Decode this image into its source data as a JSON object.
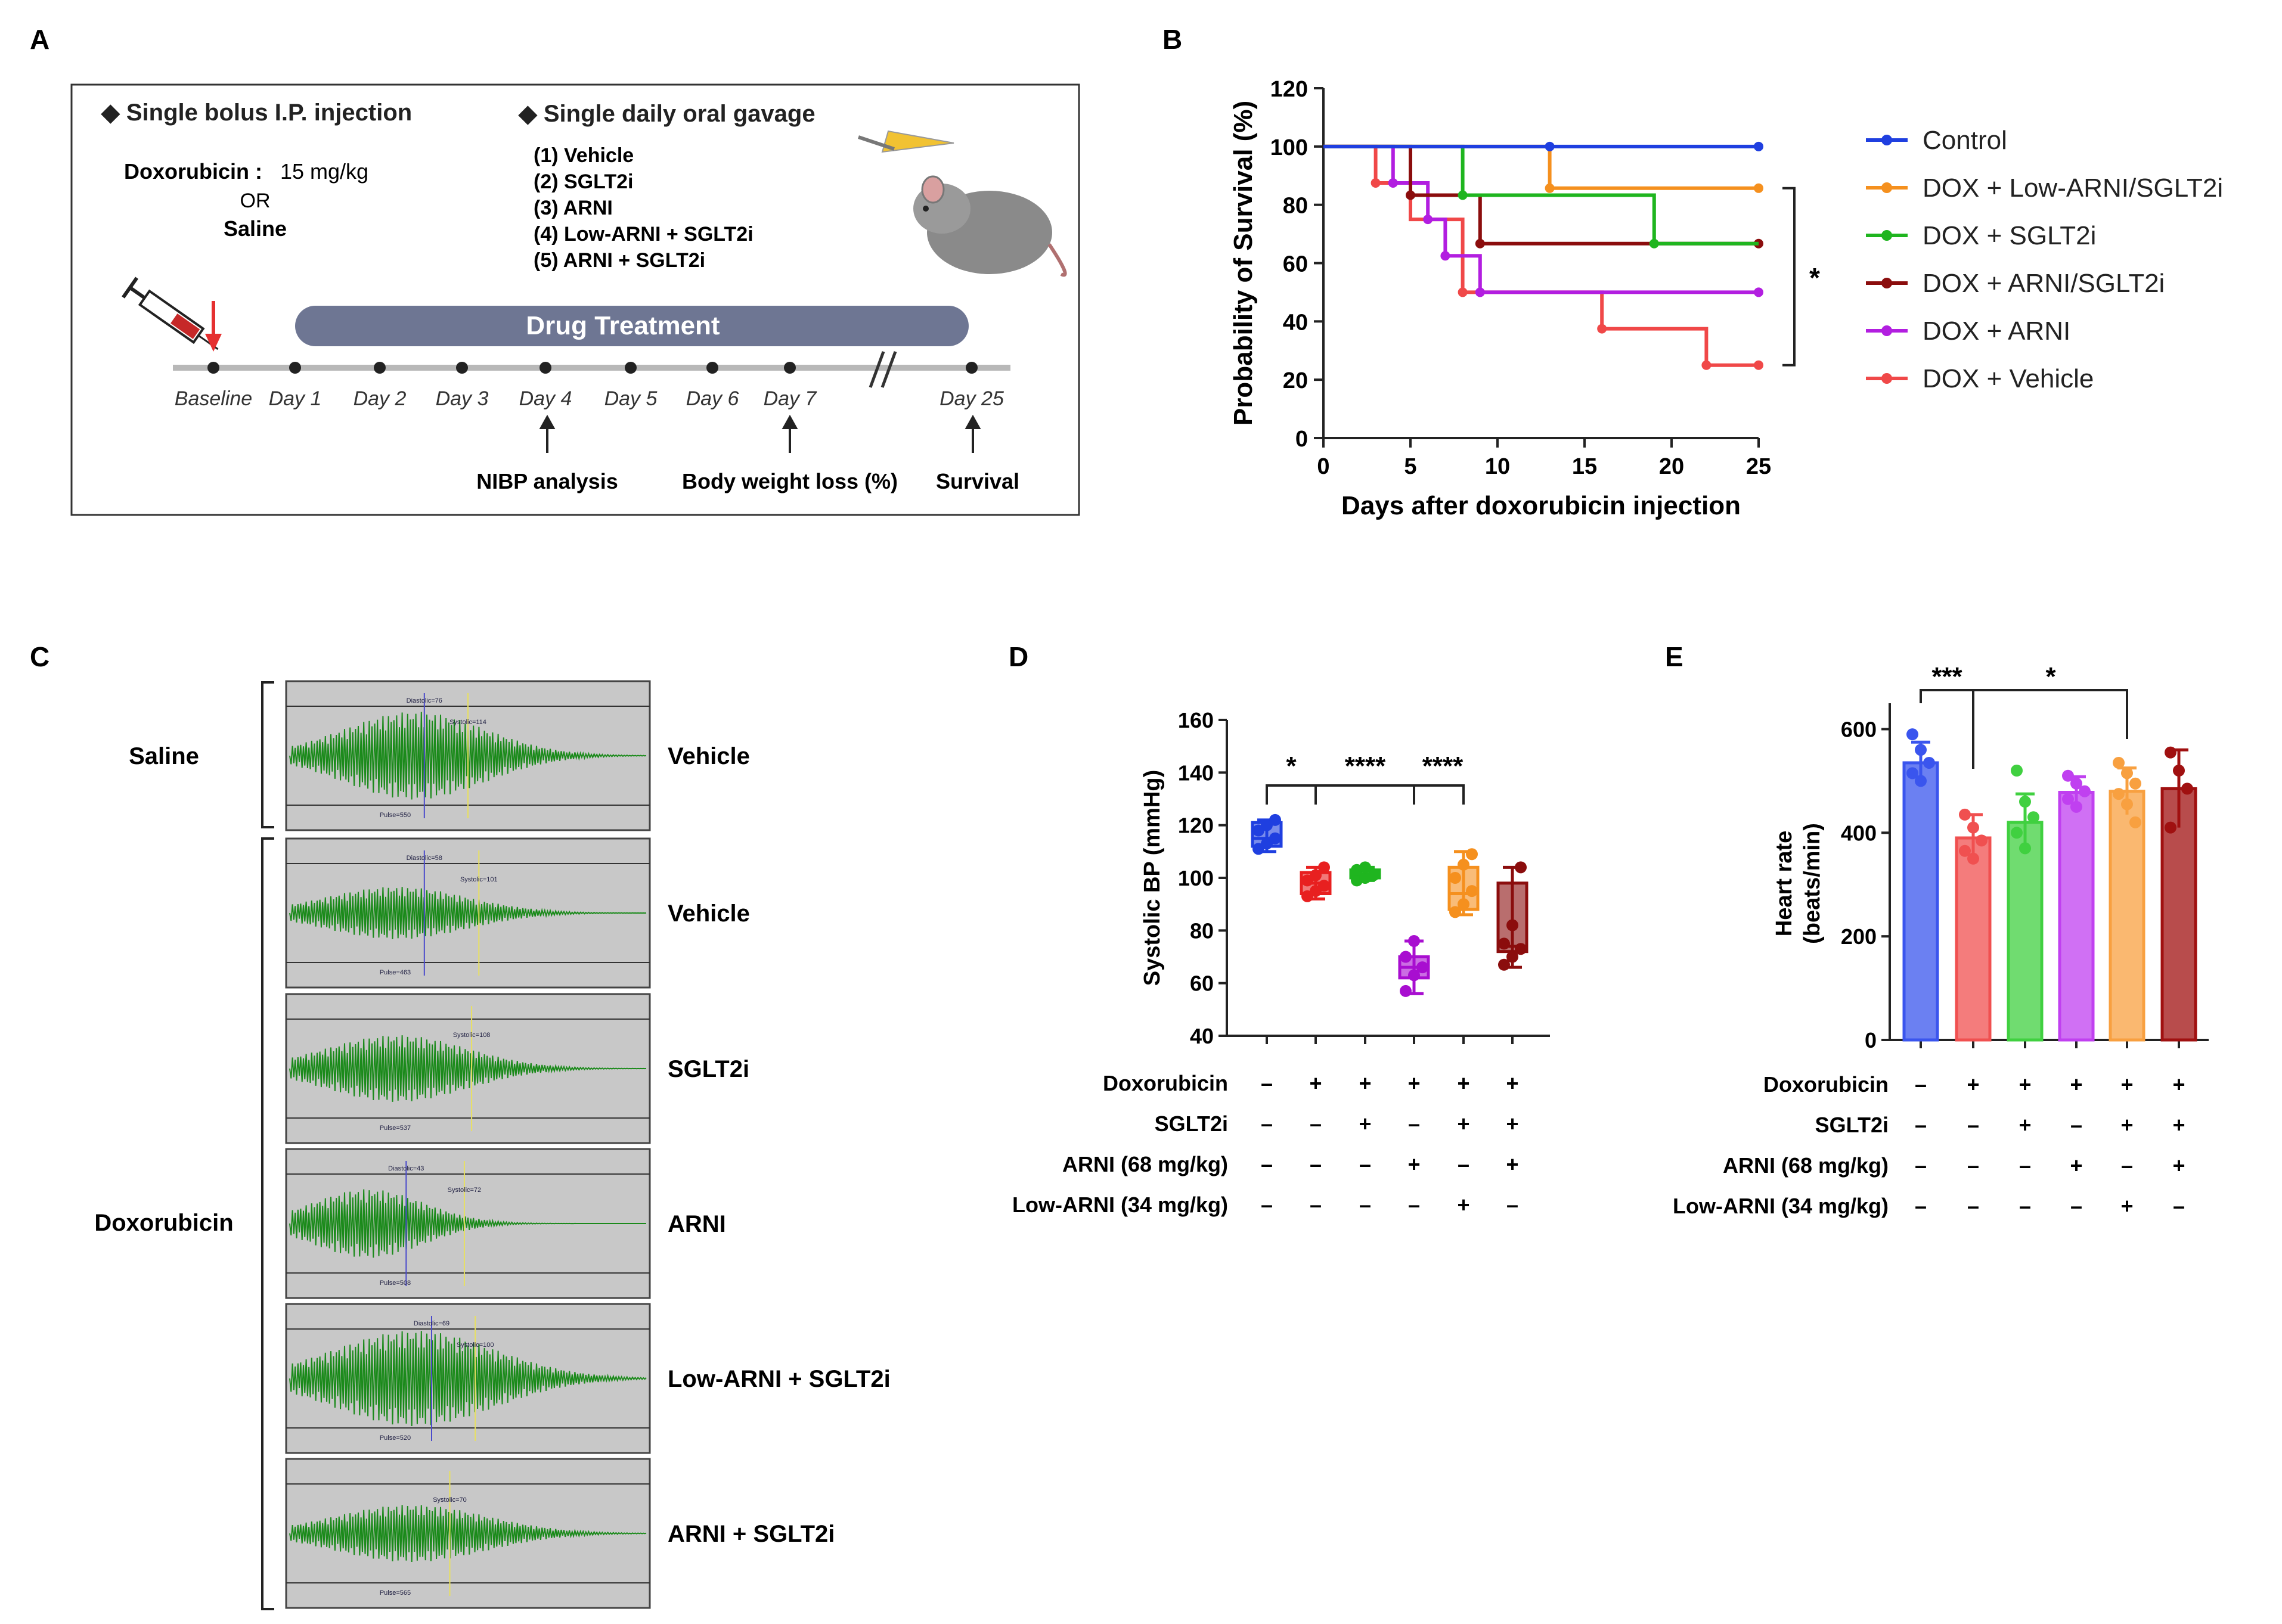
{
  "panels": {
    "A": {
      "letter": "A",
      "ip_heading": "◆ Single bolus I.P. injection",
      "oral_heading": "◆ Single daily oral gavage",
      "dox_label": "Doxorubicin :",
      "dox_dose": "15 mg/kg",
      "or_text": "OR",
      "saline": "Saline",
      "treatments": [
        "(1) Vehicle",
        "(2) SGLT2i",
        "(3) ARNI",
        "(4) Low-ARNI + SGLT2i",
        "(5) ARNI + SGLT2i"
      ],
      "bar_label": "Drug Treatment",
      "days": [
        "Baseline",
        "Day 1",
        "Day 2",
        "Day 3",
        "Day 4",
        "Day 5",
        "Day 6",
        "Day 7",
        "Day 25"
      ],
      "annotations": [
        "NIBP analysis",
        "Body weight loss (%)",
        "Survival"
      ],
      "colors": {
        "bar": "#6e7693",
        "arrow": "#e53030",
        "timeline": "#b8b8b8"
      }
    },
    "B": {
      "letter": "B",
      "significance": "*"
    },
    "C": {
      "letter": "C",
      "group_saline": "Saline",
      "group_dox": "Doxorubicin",
      "traces": [
        {
          "label": "Vehicle",
          "diastolic": "Diastolic=76",
          "systolic": "Systolic=114",
          "pulse": "Pulse=550"
        },
        {
          "label": "Vehicle",
          "diastolic": "Diastolic=58",
          "systolic": "Systolic=101",
          "pulse": "Pulse=463"
        },
        {
          "label": "SGLT2i",
          "diastolic": "",
          "systolic": "Systolic=108",
          "pulse": "Pulse=537"
        },
        {
          "label": "ARNI",
          "diastolic": "Diastolic=43",
          "systolic": "Systolic=72",
          "pulse": "Pulse=508"
        },
        {
          "label": "Low-ARNI + SGLT2i",
          "diastolic": "Diastolic=69",
          "systolic": "Systolic=100",
          "pulse": "Pulse=520"
        },
        {
          "label": "ARNI + SGLT2i",
          "diastolic": "",
          "systolic": "Systolic=70",
          "pulse": "Pulse=565"
        }
      ]
    },
    "D": {
      "letter": "D",
      "sig": [
        "*",
        "****",
        "****"
      ]
    },
    "E": {
      "letter": "E",
      "sig": [
        "***",
        "*"
      ]
    },
    "design_table": {
      "rows": [
        {
          "label": "Doxorubicin",
          "marks": [
            "–",
            "+",
            "+",
            "+",
            "+",
            "+"
          ]
        },
        {
          "label": "SGLT2i",
          "marks": [
            "–",
            "–",
            "+",
            "–",
            "+",
            "+"
          ]
        },
        {
          "label": "ARNI (68 mg/kg)",
          "marks": [
            "–",
            "–",
            "–",
            "+",
            "–",
            "+"
          ]
        },
        {
          "label": "Low-ARNI (34 mg/kg)",
          "marks": [
            "–",
            "–",
            "–",
            "–",
            "+",
            "–"
          ]
        }
      ]
    }
  },
  "chart_data": [
    {
      "id": "B",
      "type": "line",
      "step": true,
      "title": "",
      "xlabel": "Days after doxorubicin injection",
      "ylabel": "Probability of Survival (%)",
      "xlim": [
        0,
        25
      ],
      "ylim": [
        0,
        120
      ],
      "xticks": [
        0,
        5,
        10,
        15,
        20,
        25
      ],
      "yticks": [
        0,
        20,
        40,
        60,
        80,
        100,
        120
      ],
      "legend_position": "right",
      "series": [
        {
          "name": "Control",
          "color": "#1f3fe0",
          "steps": [
            [
              0,
              100
            ],
            [
              25,
              100
            ]
          ],
          "censor": [
            [
              13,
              100
            ],
            [
              25,
              100
            ]
          ]
        },
        {
          "name": "DOX + Low-ARNI/SGLT2i",
          "color": "#f5901e",
          "steps": [
            [
              0,
              100
            ],
            [
              13,
              100
            ],
            [
              13,
              85.7
            ],
            [
              25,
              85.7
            ]
          ],
          "censor": [
            [
              13,
              85.7
            ],
            [
              25,
              85.7
            ]
          ]
        },
        {
          "name": "DOX + SGLT2i",
          "color": "#1fb51f",
          "steps": [
            [
              0,
              100
            ],
            [
              8,
              100
            ],
            [
              8,
              83.3
            ],
            [
              19,
              83.3
            ],
            [
              19,
              66.7
            ],
            [
              25,
              66.7
            ]
          ],
          "censor": [
            [
              8,
              83.3
            ],
            [
              19,
              66.7
            ]
          ]
        },
        {
          "name": "DOX + ARNI/SGLT2i",
          "color": "#8b0d0d",
          "steps": [
            [
              0,
              100
            ],
            [
              5,
              100
            ],
            [
              5,
              83.3
            ],
            [
              9,
              83.3
            ],
            [
              9,
              66.7
            ],
            [
              25,
              66.7
            ]
          ],
          "censor": [
            [
              5,
              83.3
            ],
            [
              9,
              66.7
            ],
            [
              25,
              66.7
            ]
          ]
        },
        {
          "name": "DOX + ARNI",
          "color": "#b21ee0",
          "steps": [
            [
              0,
              100
            ],
            [
              4,
              100
            ],
            [
              4,
              87.5
            ],
            [
              6,
              87.5
            ],
            [
              6,
              75
            ],
            [
              7,
              75
            ],
            [
              7,
              62.5
            ],
            [
              9,
              62.5
            ],
            [
              9,
              50
            ],
            [
              25,
              50
            ]
          ],
          "censor": [
            [
              4,
              87.5
            ],
            [
              6,
              75
            ],
            [
              7,
              62.5
            ],
            [
              9,
              50
            ],
            [
              25,
              50
            ]
          ]
        },
        {
          "name": "DOX + Vehicle",
          "color": "#f04848",
          "steps": [
            [
              0,
              100
            ],
            [
              3,
              100
            ],
            [
              3,
              87.5
            ],
            [
              5,
              87.5
            ],
            [
              5,
              75
            ],
            [
              8,
              75
            ],
            [
              8,
              50
            ],
            [
              16,
              50
            ],
            [
              16,
              37.5
            ],
            [
              22,
              37.5
            ],
            [
              22,
              25
            ],
            [
              25,
              25
            ]
          ],
          "censor": [
            [
              3,
              87.5
            ],
            [
              8,
              50
            ],
            [
              16,
              37.5
            ],
            [
              22,
              25
            ],
            [
              25,
              25
            ]
          ]
        }
      ]
    },
    {
      "id": "D",
      "type": "box",
      "ylabel": "Systolic BP (mmHg)",
      "ylim": [
        40,
        160
      ],
      "yticks": [
        40,
        60,
        80,
        100,
        120,
        140,
        160
      ],
      "groups": [
        {
          "color": "#1f3fe0",
          "min": 110,
          "q1": 112,
          "median": 115,
          "q3": 121,
          "max": 122,
          "points": [
            111,
            113,
            115,
            118,
            120,
            122
          ]
        },
        {
          "color": "#e82020",
          "min": 92,
          "q1": 94,
          "median": 98,
          "q3": 102,
          "max": 104,
          "points": [
            93,
            95,
            97,
            99,
            101,
            104
          ]
        },
        {
          "color": "#1fb51f",
          "min": 99,
          "q1": 100,
          "median": 101,
          "q3": 103,
          "max": 104,
          "points": [
            99,
            100,
            101,
            103,
            104
          ]
        },
        {
          "color": "#a80ed0",
          "min": 56,
          "q1": 62,
          "median": 66,
          "q3": 70,
          "max": 76,
          "points": [
            57,
            63,
            66,
            70,
            76
          ]
        },
        {
          "color": "#f5901e",
          "min": 86,
          "q1": 88,
          "median": 94,
          "q3": 104,
          "max": 110,
          "points": [
            87,
            90,
            95,
            100,
            105,
            109
          ]
        },
        {
          "color": "#8b0d0d",
          "min": 66,
          "q1": 72,
          "median": 74,
          "q3": 98,
          "max": 104,
          "points": [
            67,
            70,
            73,
            75,
            82,
            104
          ]
        }
      ]
    },
    {
      "id": "E",
      "type": "bar",
      "ylabel": "Heart rate",
      "ylabel2": "(beats/min)",
      "ylim": [
        0,
        650
      ],
      "yticks": [
        0,
        200,
        400,
        600
      ],
      "groups": [
        {
          "color": "#3a55ee",
          "mean": 535,
          "sd": 40,
          "points": [
            590,
            560,
            535,
            515,
            500
          ]
        },
        {
          "color": "#f05050",
          "mean": 390,
          "sd": 45,
          "points": [
            435,
            410,
            385,
            365,
            350
          ]
        },
        {
          "color": "#40d040",
          "mean": 420,
          "sd": 55,
          "points": [
            520,
            460,
            430,
            400,
            370
          ]
        },
        {
          "color": "#c040f0",
          "mean": 478,
          "sd": 30,
          "points": [
            510,
            495,
            480,
            465,
            450
          ]
        },
        {
          "color": "#f8a040",
          "mean": 480,
          "sd": 45,
          "points": [
            535,
            515,
            495,
            475,
            455,
            420
          ]
        },
        {
          "color": "#a01010",
          "mean": 485,
          "sd": 75,
          "points": [
            555,
            520,
            485,
            410
          ]
        }
      ]
    }
  ]
}
